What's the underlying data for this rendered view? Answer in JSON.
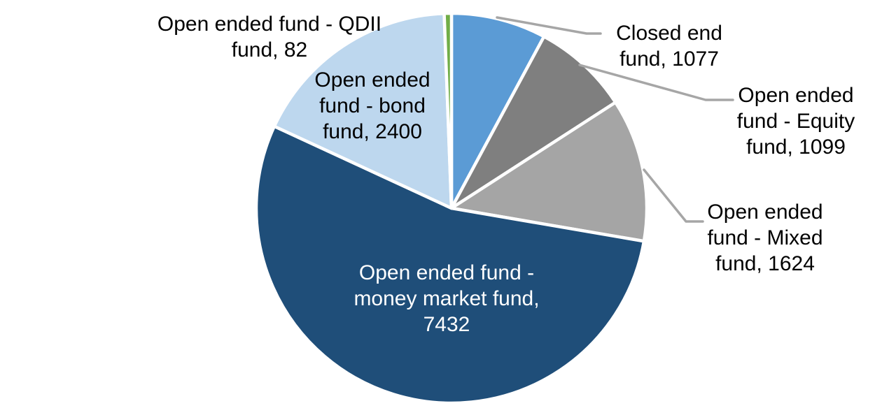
{
  "chart_data": {
    "type": "pie",
    "title": "",
    "start_angle_deg": 0,
    "direction": "clockwise",
    "background_color": "#FFFFFF",
    "leader_line_color": "#A6A6A6",
    "slice_border_color": "#FFFFFF",
    "slices": [
      {
        "label": "Closed end fund",
        "value": 1077,
        "color": "#5B9BD5"
      },
      {
        "label": "Open ended fund - Equity fund",
        "value": 1099,
        "color": "#7F7F7F"
      },
      {
        "label": "Open ended fund - Mixed fund",
        "value": 1624,
        "color": "#A5A5A5"
      },
      {
        "label": "Open ended fund - money market fund",
        "value": 7432,
        "color": "#1F4E79"
      },
      {
        "label": "Open ended fund - bond fund",
        "value": 2400,
        "color": "#BDD7EE"
      },
      {
        "label": "Open ended fund - QDII fund",
        "value": 82,
        "color": "#70AD47"
      }
    ],
    "data_labels": [
      {
        "id": "qdii",
        "lines": [
          "Open ended fund - QDII",
          "fund, 82"
        ],
        "text_color": "#000000"
      },
      {
        "id": "bond",
        "lines": [
          "Open ended",
          "fund - bond",
          "fund, 2400"
        ],
        "text_color": "#000000"
      },
      {
        "id": "closed-end",
        "lines": [
          "Closed end",
          "fund, 1077"
        ],
        "text_color": "#000000"
      },
      {
        "id": "equity",
        "lines": [
          "Open ended",
          "fund - Equity",
          "fund, 1099"
        ],
        "text_color": "#000000"
      },
      {
        "id": "mixed",
        "lines": [
          "Open ended",
          "fund - Mixed",
          "fund, 1624"
        ],
        "text_color": "#000000"
      },
      {
        "id": "money-market",
        "lines": [
          "Open ended fund -",
          "money market fund,",
          "7432"
        ],
        "text_color": "#FFFFFF"
      }
    ]
  }
}
